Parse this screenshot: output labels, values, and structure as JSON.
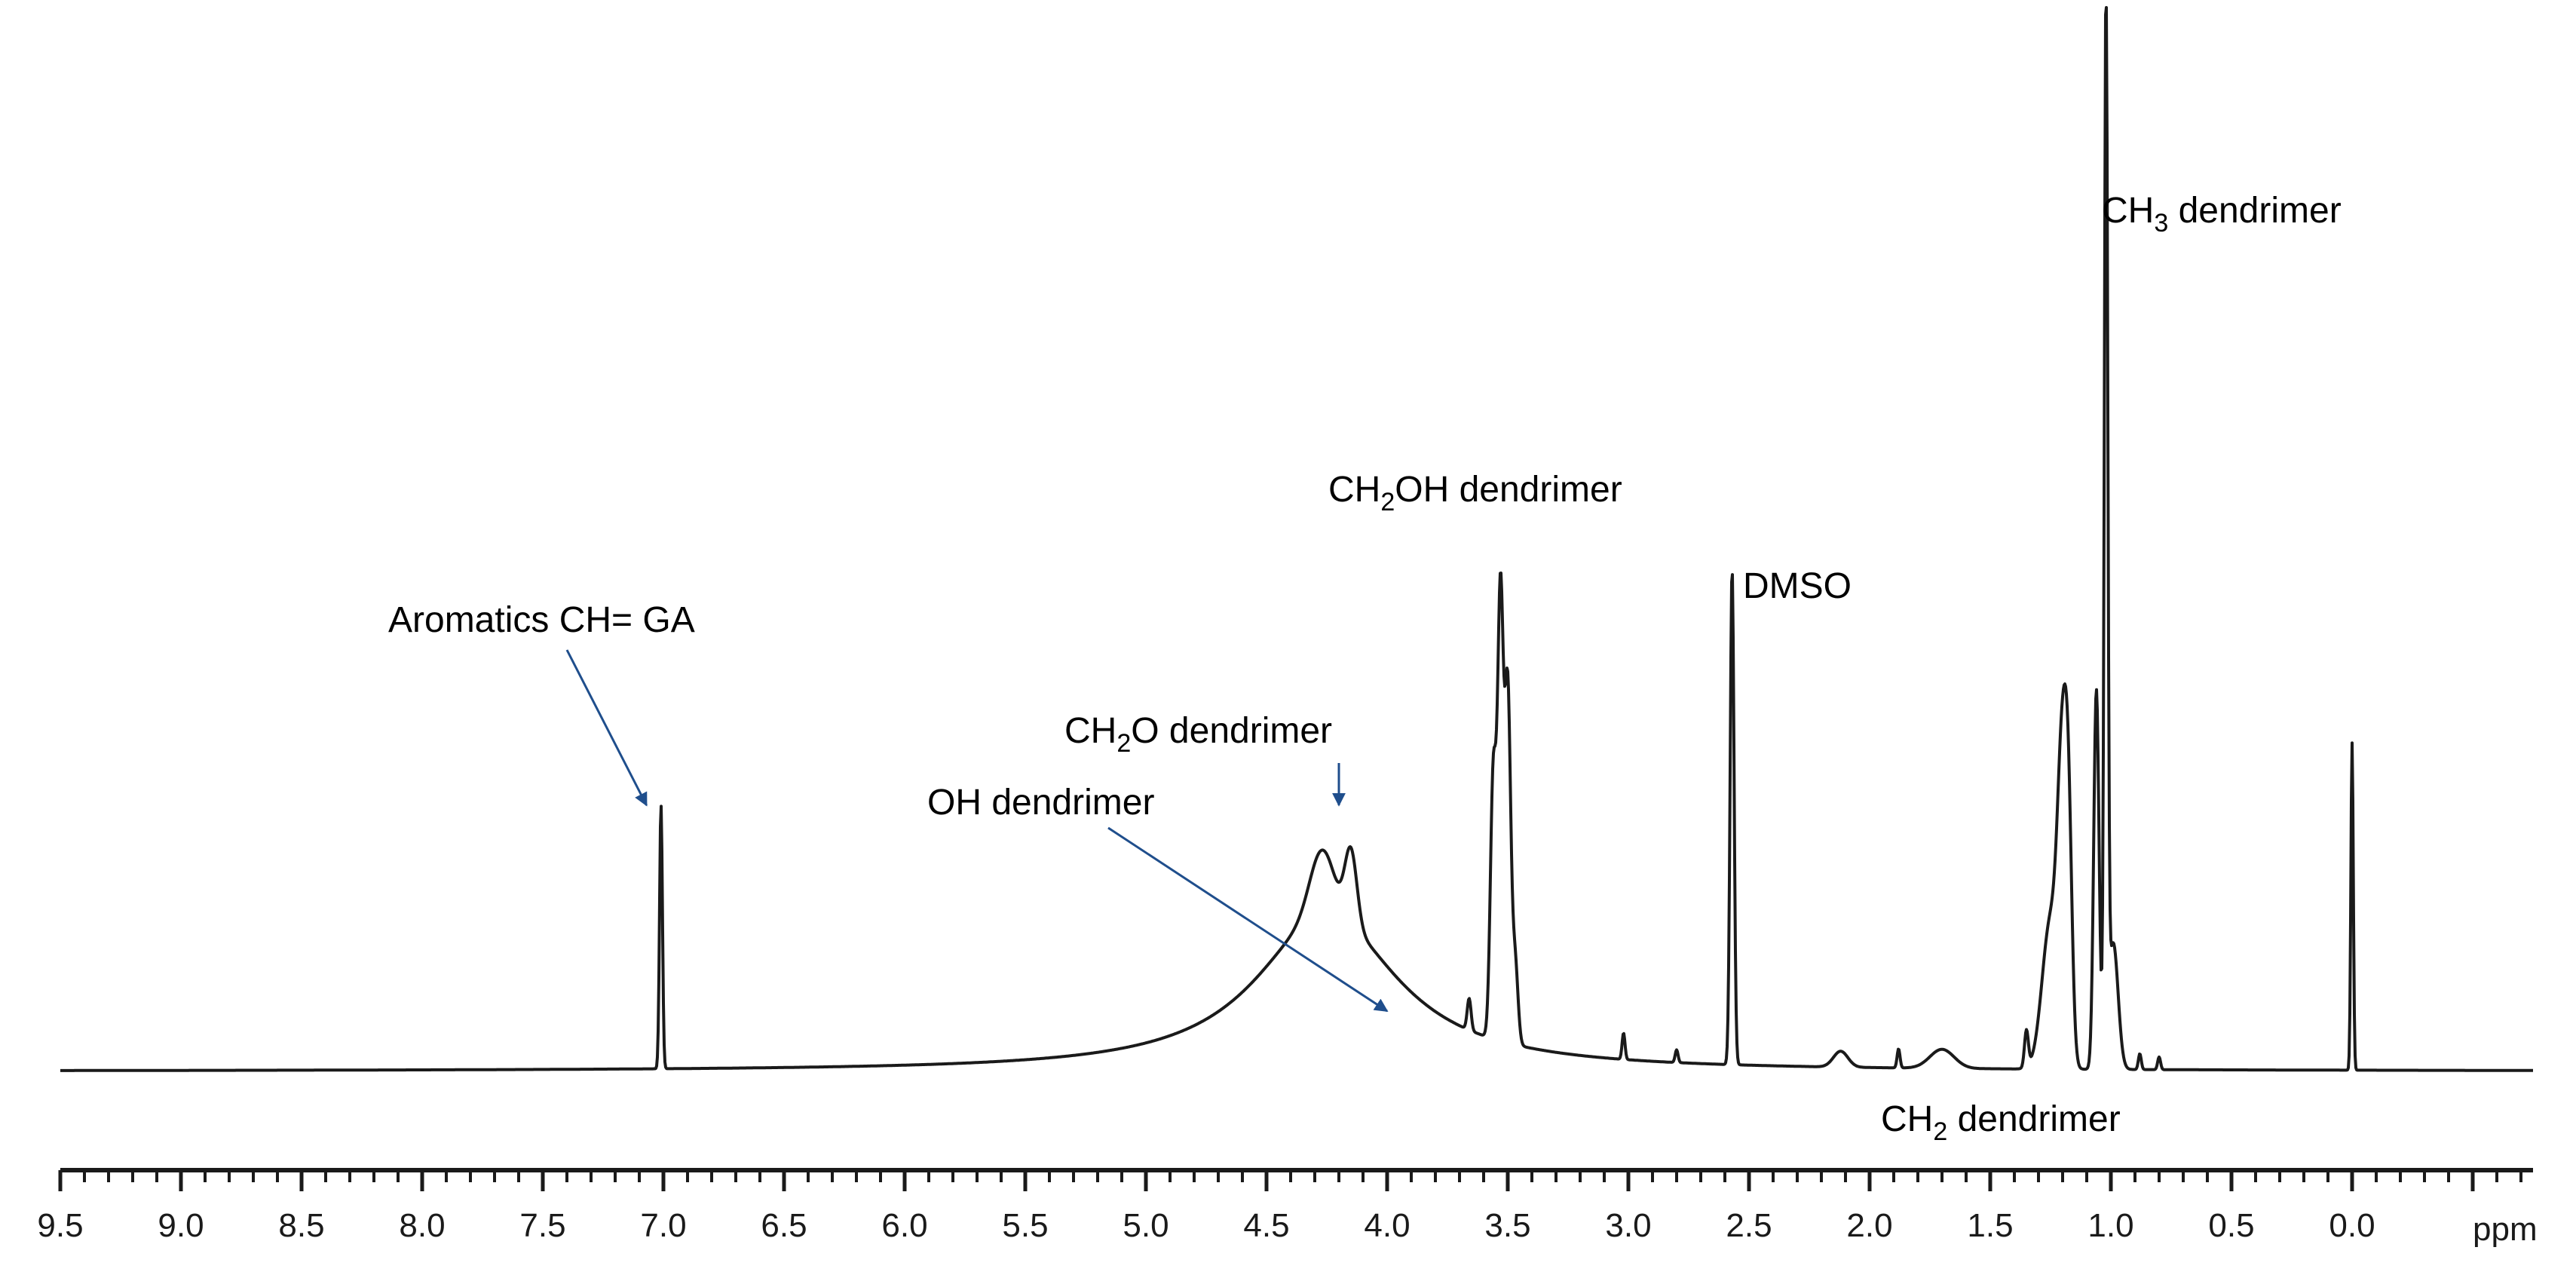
{
  "chart_data": {
    "type": "line",
    "title": "",
    "xlabel": "ppm",
    "ylabel": "",
    "x_direction": "descending",
    "xlim": [
      9.5,
      -0.75
    ],
    "ylim": [
      0,
      1.0
    ],
    "grid": false,
    "colors": {
      "spectrum": "#1a1a1a",
      "annotation": "#1f4e8c",
      "text": "#000000"
    },
    "ticks": [
      "9.5",
      "9.0",
      "8.5",
      "8.0",
      "7.5",
      "7.0",
      "6.5",
      "6.0",
      "5.5",
      "5.0",
      "4.5",
      "4.0",
      "3.5",
      "3.0",
      "2.5",
      "2.0",
      "1.5",
      "1.0",
      "0.5",
      "0.0"
    ],
    "axis_unit": "ppm",
    "baseline": 0.003,
    "peaks": [
      {
        "ppm": 7.01,
        "height": 0.25,
        "width": 0.006,
        "shape": "g"
      },
      {
        "ppm": 4.25,
        "height": 0.15,
        "width": 0.35,
        "shape": "l"
      },
      {
        "ppm": 4.27,
        "height": 0.06,
        "width": 0.05,
        "shape": "g"
      },
      {
        "ppm": 4.15,
        "height": 0.07,
        "width": 0.025,
        "shape": "g"
      },
      {
        "ppm": 3.66,
        "height": 0.03,
        "width": 0.008,
        "shape": "g"
      },
      {
        "ppm": 3.56,
        "height": 0.25,
        "width": 0.012,
        "shape": "g"
      },
      {
        "ppm": 3.53,
        "height": 0.42,
        "width": 0.012,
        "shape": "g"
      },
      {
        "ppm": 3.5,
        "height": 0.33,
        "width": 0.012,
        "shape": "g"
      },
      {
        "ppm": 3.47,
        "height": 0.08,
        "width": 0.012,
        "shape": "g"
      },
      {
        "ppm": 3.02,
        "height": 0.025,
        "width": 0.006,
        "shape": "g"
      },
      {
        "ppm": 2.8,
        "height": 0.012,
        "width": 0.006,
        "shape": "g"
      },
      {
        "ppm": 2.57,
        "height": 0.47,
        "width": 0.008,
        "shape": "g"
      },
      {
        "ppm": 2.12,
        "height": 0.015,
        "width": 0.03,
        "shape": "g"
      },
      {
        "ppm": 1.88,
        "height": 0.018,
        "width": 0.006,
        "shape": "g"
      },
      {
        "ppm": 1.7,
        "height": 0.018,
        "width": 0.05,
        "shape": "g"
      },
      {
        "ppm": 1.35,
        "height": 0.035,
        "width": 0.008,
        "shape": "g"
      },
      {
        "ppm": 1.25,
        "height": 0.14,
        "width": 0.035,
        "shape": "g"
      },
      {
        "ppm": 1.2,
        "height": 0.26,
        "width": 0.02,
        "shape": "g"
      },
      {
        "ppm": 1.175,
        "height": 0.17,
        "width": 0.015,
        "shape": "g"
      },
      {
        "ppm": 1.06,
        "height": 0.36,
        "width": 0.011,
        "shape": "g"
      },
      {
        "ppm": 1.02,
        "height": 1.0,
        "width": 0.007,
        "shape": "g"
      },
      {
        "ppm": 0.99,
        "height": 0.12,
        "width": 0.02,
        "shape": "g"
      },
      {
        "ppm": 0.88,
        "height": 0.015,
        "width": 0.006,
        "shape": "g"
      },
      {
        "ppm": 0.8,
        "height": 0.012,
        "width": 0.006,
        "shape": "g"
      },
      {
        "ppm": 0.0,
        "height": 0.31,
        "width": 0.005,
        "shape": "g"
      }
    ],
    "annotations": [
      {
        "id": "aromatics",
        "text": "Aromatics CH= GA",
        "ppm": 7.01,
        "arrow": true,
        "arrow_tip": [
          7.07,
          0.255
        ]
      },
      {
        "id": "ch2o",
        "main": "CH",
        "sub": "2",
        "rest": "O  dendrimer",
        "ppm": 4.2,
        "arrow": true,
        "arrow_tip": [
          4.2,
          0.255
        ]
      },
      {
        "id": "oh",
        "text": "OH  dendrimer",
        "ppm": 4.25,
        "arrow": true,
        "arrow_tip": [
          4.0,
          0.06
        ]
      },
      {
        "id": "ch2oh",
        "main": "CH",
        "sub": "2",
        "rest": "OH  dendrimer",
        "ppm": 3.53,
        "arrow": false
      },
      {
        "id": "dmso",
        "text": "DMSO",
        "ppm": 2.57,
        "arrow": false
      },
      {
        "id": "ch3",
        "main": "CH",
        "sub": "3",
        "rest": " dendrimer",
        "ppm": 1.02,
        "arrow": false
      },
      {
        "id": "ch2",
        "main": "CH",
        "sub": "2",
        "rest": " dendrimer",
        "ppm": 1.2,
        "arrow": false
      }
    ]
  }
}
